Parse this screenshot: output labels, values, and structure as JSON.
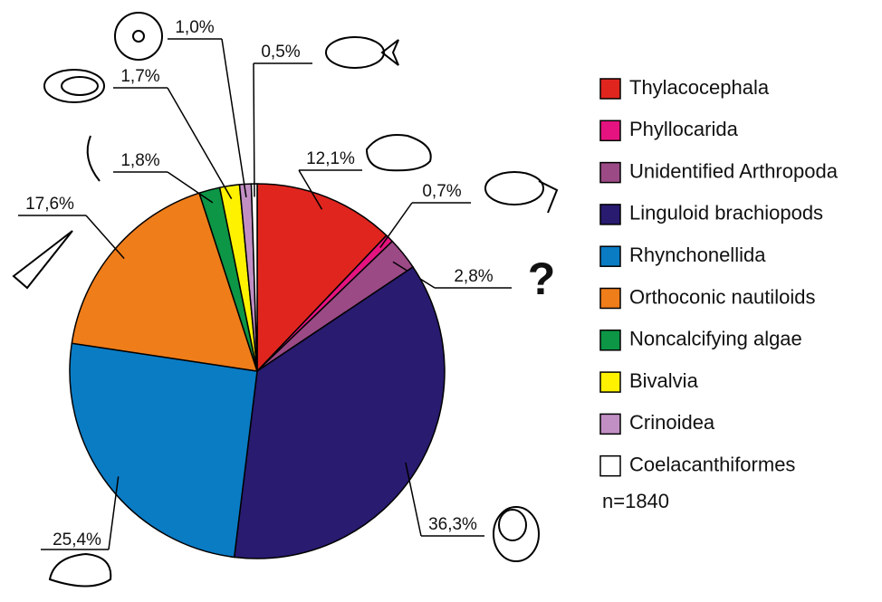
{
  "chart_data": {
    "type": "pie",
    "categories": [
      "Thylacocephala",
      "Phyllocarida",
      "Unidentified Arthropoda",
      "Linguloid brachiopods",
      "Rhynchonellida",
      "Orthoconic nautiloids",
      "Noncalcifying algae",
      "Bivalvia",
      "Crinoidea",
      "Coelacanthiformes"
    ],
    "values": [
      12.1,
      0.7,
      2.8,
      36.3,
      25.4,
      17.6,
      1.8,
      1.7,
      1.0,
      0.5
    ],
    "value_labels": [
      "12,1%",
      "0,7%",
      "2,8%",
      "36,3%",
      "25,4%",
      "17,6%",
      "1,8%",
      "1,7%",
      "1,0%",
      "0,5%"
    ],
    "colors": [
      "#e0251f",
      "#e5137f",
      "#9b4a86",
      "#281b70",
      "#0a7cc4",
      "#ef7d1a",
      "#0c9646",
      "#fff200",
      "#c28fc4",
      "#ffffff"
    ],
    "annotations": [
      "n=1840",
      "?"
    ],
    "legend": "right"
  }
}
